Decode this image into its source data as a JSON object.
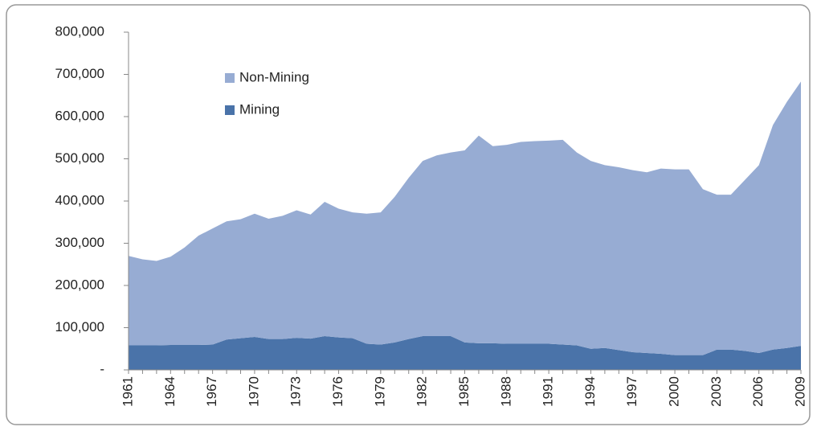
{
  "chart_data": {
    "type": "stacked-area",
    "x": [
      1961,
      1962,
      1963,
      1964,
      1965,
      1966,
      1967,
      1968,
      1969,
      1970,
      1971,
      1972,
      1973,
      1974,
      1975,
      1976,
      1977,
      1978,
      1979,
      1980,
      1981,
      1982,
      1983,
      1984,
      1985,
      1986,
      1987,
      1988,
      1989,
      1990,
      1991,
      1992,
      1993,
      1994,
      1995,
      1996,
      1997,
      1998,
      1999,
      2000,
      2001,
      2002,
      2003,
      2004,
      2005,
      2006,
      2007,
      2008,
      2009
    ],
    "xlim": [
      1961,
      2009
    ],
    "xticks": [
      1961,
      1964,
      1967,
      1970,
      1973,
      1976,
      1979,
      1982,
      1985,
      1988,
      1991,
      1994,
      1997,
      2000,
      2003,
      2006,
      2009
    ],
    "ylim": [
      0,
      800000
    ],
    "yticks": [
      {
        "value": 0,
        "label": "-"
      },
      {
        "value": 100000,
        "label": "100,000"
      },
      {
        "value": 200000,
        "label": "200,000"
      },
      {
        "value": 300000,
        "label": "300,000"
      },
      {
        "value": 400000,
        "label": "400,000"
      },
      {
        "value": 500000,
        "label": "500,000"
      },
      {
        "value": 600000,
        "label": "600,000"
      },
      {
        "value": 700000,
        "label": "700,000"
      },
      {
        "value": 800000,
        "label": "800,000"
      }
    ],
    "legend": "top-left",
    "series": [
      {
        "name": "Mining",
        "color": "#4a73a9",
        "values": [
          58000,
          58000,
          58000,
          59000,
          59000,
          59000,
          60000,
          72000,
          75000,
          78000,
          73000,
          73000,
          76000,
          74000,
          80000,
          77000,
          75000,
          62000,
          60000,
          65000,
          73000,
          80000,
          80000,
          80000,
          65000,
          63000,
          63000,
          62000,
          62000,
          62000,
          62000,
          60000,
          58000,
          50000,
          52000,
          47000,
          42000,
          40000,
          38000,
          35000,
          35000,
          35000,
          48000,
          48000,
          45000,
          40000,
          48000,
          52000,
          57000
        ]
      },
      {
        "name": "Non-Mining",
        "color": "#97acd3",
        "values": [
          212000,
          204000,
          200000,
          209000,
          231000,
          259000,
          275000,
          280000,
          282000,
          292000,
          285000,
          292000,
          302000,
          294000,
          318000,
          305000,
          298000,
          308000,
          313000,
          345000,
          382000,
          415000,
          428000,
          435000,
          455000,
          492000,
          467000,
          471000,
          478000,
          480000,
          481000,
          485000,
          457000,
          445000,
          433000,
          433000,
          431000,
          428000,
          439000,
          440000,
          440000,
          393000,
          367000,
          367000,
          405000,
          445000,
          532000,
          583000,
          626000
        ]
      }
    ]
  }
}
